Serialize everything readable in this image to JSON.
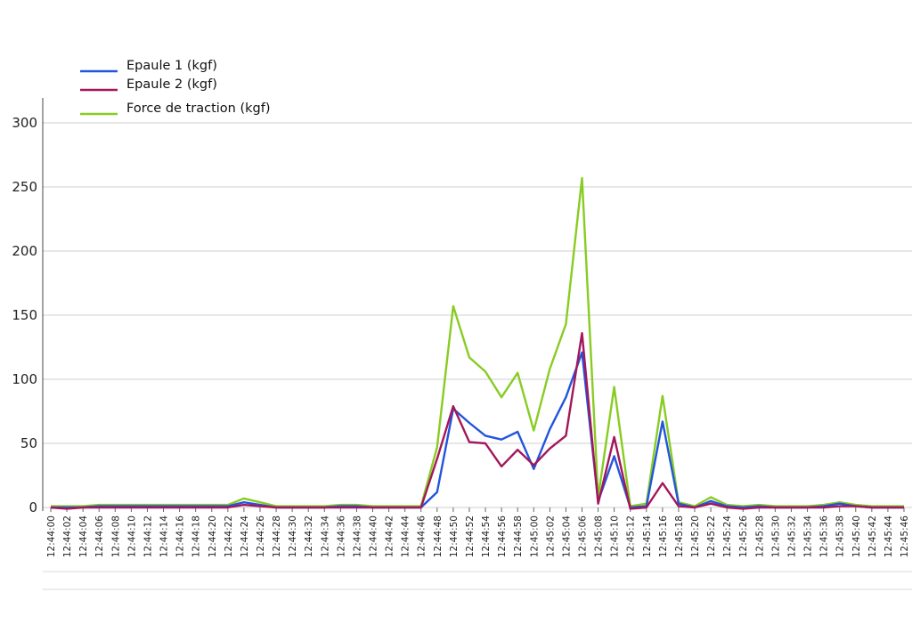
{
  "chart_data": {
    "type": "line",
    "title": "",
    "xlabel": "",
    "ylabel": "",
    "ylim": [
      0,
      300
    ],
    "yticks": [
      0,
      50,
      100,
      150,
      200,
      250,
      300
    ],
    "grid": true,
    "legend_position": "top-left",
    "x": [
      "12:44:00",
      "12:44:02",
      "12:44:04",
      "12:44:06",
      "12:44:08",
      "12:44:10",
      "12:44:12",
      "12:44:14",
      "12:44:16",
      "12:44:18",
      "12:44:20",
      "12:44:22",
      "12:44:24",
      "12:44:26",
      "12:44:28",
      "12:44:30",
      "12:44:32",
      "12:44:34",
      "12:44:36",
      "12:44:38",
      "12:44:40",
      "12:44:42",
      "12:44:44",
      "12:44:46",
      "12:44:48",
      "12:44:50",
      "12:44:52",
      "12:44:54",
      "12:44:56",
      "12:44:58",
      "12:45:00",
      "12:45:02",
      "12:45:04",
      "12:45:06",
      "12:45:08",
      "12:45:10",
      "12:45:12",
      "12:45:14",
      "12:45:16",
      "12:45:18",
      "12:45:20",
      "12:45:22",
      "12:45:24",
      "12:45:26",
      "12:45:28",
      "12:45:30",
      "12:45:32",
      "12:45:34",
      "12:45:36",
      "12:45:38",
      "12:45:40",
      "12:45:42",
      "12:45:44",
      "12:45:46"
    ],
    "series": [
      {
        "name": "Epaule 1 (kgf)",
        "color": "#2255dd",
        "values": [
          0,
          0,
          0,
          1,
          1,
          1,
          1,
          1,
          1,
          1,
          1,
          1,
          4,
          2,
          0,
          0,
          0,
          0,
          1,
          1,
          0,
          0,
          0,
          0,
          12,
          77,
          66,
          56,
          53,
          59,
          30,
          61,
          86,
          121,
          5,
          40,
          0,
          1,
          67,
          3,
          0,
          5,
          1,
          0,
          1,
          0,
          0,
          0,
          1,
          3,
          1,
          0,
          0,
          0
        ]
      },
      {
        "name": "Epaule 2 (kgf)",
        "color": "#a3175a",
        "values": [
          0,
          -1,
          0,
          0,
          0,
          0,
          0,
          0,
          0,
          0,
          0,
          0,
          2,
          1,
          0,
          0,
          0,
          0,
          0,
          0,
          0,
          0,
          0,
          0,
          38,
          79,
          51,
          50,
          32,
          45,
          33,
          46,
          56,
          136,
          3,
          55,
          -1,
          0,
          19,
          1,
          0,
          3,
          0,
          -1,
          0,
          0,
          0,
          0,
          0,
          1,
          1,
          0,
          0,
          0
        ]
      },
      {
        "name": "Force de traction (kgf)",
        "color": "#88cc22",
        "values": [
          1,
          1,
          1,
          2,
          2,
          2,
          2,
          2,
          2,
          2,
          2,
          2,
          7,
          4,
          1,
          1,
          1,
          1,
          2,
          2,
          1,
          1,
          1,
          1,
          47,
          157,
          117,
          106,
          86,
          105,
          60,
          108,
          143,
          257,
          8,
          94,
          1,
          3,
          87,
          4,
          1,
          8,
          2,
          1,
          2,
          1,
          1,
          1,
          2,
          4,
          2,
          1,
          1,
          1
        ]
      }
    ]
  }
}
